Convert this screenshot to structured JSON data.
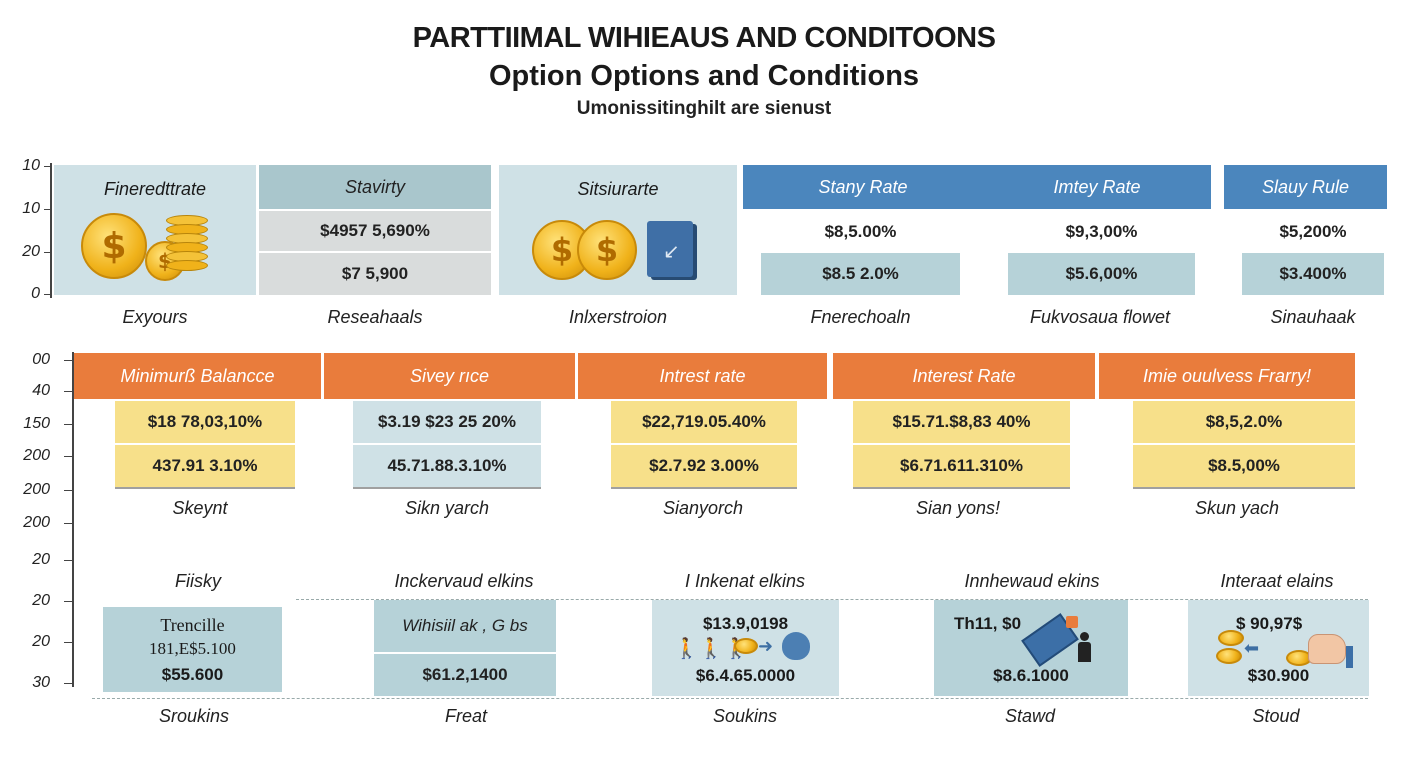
{
  "header": {
    "title": "PARTTIIMAL WIHIEAUS AND CONDITOONS",
    "title2": "Option Options and Conditions",
    "subtitle": "Umonissitinghilt are sienust"
  },
  "axis_labels": [
    "10",
    "10",
    "20",
    "0",
    "00",
    "40",
    "150",
    "200",
    "200",
    "200",
    "20",
    "20",
    "20",
    "30"
  ],
  "row1": {
    "panel1": {
      "label": "Fineredttrate",
      "footer": "Exyours"
    },
    "panel2": {
      "header": "Stavirty",
      "values": [
        "$4957 5,690%",
        "$7 5,900"
      ],
      "footer": "Reseahaals"
    },
    "panel3": {
      "label": "Sitsiurarte",
      "footer": "Inlxerstroion"
    },
    "panel4": {
      "headers": [
        "Stany Rate",
        "Imtey Rate",
        "Slauy Rule"
      ],
      "top_values": [
        "$8,5.00%",
        "$9,3,00%",
        "$5,200%"
      ],
      "box_values": [
        "$8.5 2.0%",
        "$5.6,00%",
        "$3.400%"
      ],
      "footers": [
        "Fnerechoaln",
        "Fukvosaua flowet",
        "Sinauhaak"
      ]
    }
  },
  "row2": {
    "headers": [
      "Minimurß Balancce",
      "Sivey rıce",
      "Intrest rate",
      "Interest Rate",
      "Imie ouulvess Frarry!"
    ],
    "values1": [
      "$18 78,03,10%",
      "$3.19 $23 25 20%",
      "$22,719.05.40%",
      "$15.71.$8,83 40%",
      "$8,5,2.0%"
    ],
    "values2": [
      "437.91 3.10%",
      "45.71.88.3.10%",
      "$2.7.92 3.00%",
      "$6.71.611.310%",
      "$8.5,00%"
    ],
    "footers": [
      "Skeynt",
      "Sikn yarch",
      "Sianyorch",
      "Sian yons!",
      "Skun yach"
    ]
  },
  "row3": {
    "headers": [
      "Fiisky",
      "Inckervaud elkins",
      "I Inkenat elkins",
      "Innhewaud ekins",
      "Interaat elains"
    ],
    "panel1": {
      "lines": [
        "Trencille",
        "181,E$5.100",
        "$55.600"
      ]
    },
    "panel2": {
      "lines": [
        "Wihisiil ak , G bs",
        "$61.2,1400"
      ]
    },
    "panel3": {
      "lines": [
        "$13.9,0198",
        "$6.4.65.0000"
      ]
    },
    "panel4": {
      "lines": [
        "Th11, $0",
        "$8.6.1000"
      ]
    },
    "panel5": {
      "lines": [
        "$ 90,97$",
        "$30.900"
      ]
    },
    "footers": [
      "Sroukins",
      "Freat",
      "Soukins",
      "Stawd",
      "Stoud"
    ]
  },
  "colors": {
    "blue": "#4b86bd",
    "orange": "#e97c3c",
    "yellow": "#f7e08a",
    "teal": "#cfe1e6"
  }
}
